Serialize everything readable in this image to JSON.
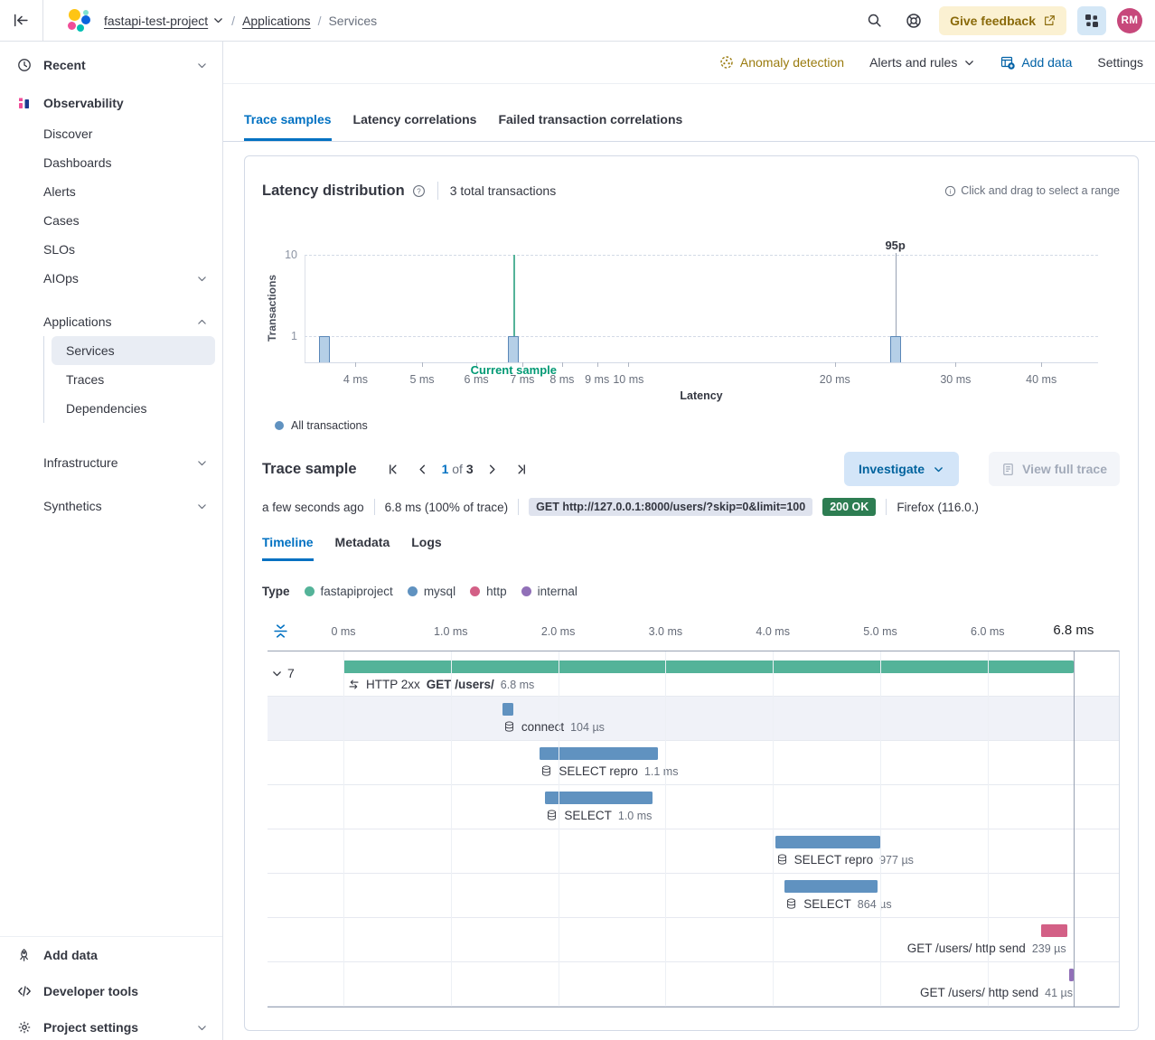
{
  "header": {
    "breadcrumbs": [
      {
        "label": "fastapi-test-project",
        "dropdown": true
      },
      {
        "label": "Applications"
      },
      {
        "label": "Services",
        "current": true
      }
    ],
    "give_feedback_label": "Give feedback",
    "avatar_initials": "RM"
  },
  "sidebar": {
    "items": [
      {
        "label": "Recent",
        "icon": "clock",
        "chevron": "down",
        "bold": true,
        "mt": 8,
        "h": 36
      },
      {
        "label": "Observability",
        "icon": "observability",
        "bold": true,
        "mt": 6,
        "h": 36
      },
      {
        "label": "Discover"
      },
      {
        "label": "Dashboards"
      },
      {
        "label": "Alerts"
      },
      {
        "label": "Cases"
      },
      {
        "label": "SLOs"
      },
      {
        "label": "AIOps",
        "chevron": "down"
      },
      {
        "label": "Applications",
        "chevron": "up",
        "mt": 16,
        "children": [
          {
            "label": "Services",
            "selected": true
          },
          {
            "label": "Traces"
          },
          {
            "label": "Dependencies"
          }
        ]
      },
      {
        "label": "Infrastructure",
        "chevron": "down",
        "mt": 28
      },
      {
        "label": "Synthetics",
        "chevron": "down",
        "mt": 16
      }
    ],
    "footer_items": [
      {
        "label": "Add data",
        "icon": "rocket"
      },
      {
        "label": "Developer tools",
        "icon": "code"
      },
      {
        "label": "Project settings",
        "icon": "gear",
        "chevron": "down"
      }
    ]
  },
  "toolbar": {
    "anomaly_detection": "Anomaly detection",
    "alerts_and_rules": "Alerts and rules",
    "add_data": "Add data",
    "settings": "Settings"
  },
  "main_tabs": [
    {
      "label": "Trace samples",
      "active": true
    },
    {
      "label": "Latency correlations"
    },
    {
      "label": "Failed transaction correlations"
    }
  ],
  "latency_panel": {
    "title": "Latency distribution",
    "total": "3 total transactions",
    "hint": "Click and drag to select a range"
  },
  "chart_data": {
    "type": "bar",
    "title": "Latency distribution",
    "xlabel": "Latency",
    "ylabel": "Transactions",
    "x_scale": "log",
    "x_domain_ms": [
      3.37,
      48.4
    ],
    "x_ticks": [
      {
        "ms": 4,
        "label": "4 ms"
      },
      {
        "ms": 5,
        "label": "5 ms"
      },
      {
        "ms": 6,
        "label": "6 ms"
      },
      {
        "ms": 7,
        "label": "7 ms"
      },
      {
        "ms": 8,
        "label": "8 ms"
      },
      {
        "ms": 9,
        "label": "9 ms"
      },
      {
        "ms": 10,
        "label": "10 ms"
      },
      {
        "ms": 20,
        "label": "20 ms"
      },
      {
        "ms": 30,
        "label": "30 ms"
      },
      {
        "ms": 40,
        "label": "40 ms"
      }
    ],
    "y_ticks": [
      {
        "v": 1,
        "label": "1"
      },
      {
        "v": 10,
        "label": "10"
      }
    ],
    "bars": [
      {
        "latency_ms": 3.6,
        "count": 1
      },
      {
        "latency_ms": 6.8,
        "count": 1
      },
      {
        "latency_ms": 24.5,
        "count": 1
      }
    ],
    "bar_fill": "#b5cfe7",
    "bar_stroke": "#5a87b8",
    "annotations": [
      {
        "ms": 6.8,
        "label": "Current sample",
        "position": "below",
        "line_color": "#54b399",
        "label_color": "#009974"
      },
      {
        "ms": 24.5,
        "label": "95p",
        "position": "above",
        "line_color": "#98a2b3",
        "label_color": "#343741"
      }
    ],
    "series_name": "All transactions",
    "legend_color": "#6092c0"
  },
  "trace_sample": {
    "title": "Trace sample",
    "page": "1",
    "of_label": "of",
    "total_pages": "3",
    "investigate_label": "Investigate",
    "view_full_trace_label": "View full trace",
    "timestamp": "a few seconds ago",
    "duration": "6.8 ms",
    "percent": "(100% of trace)",
    "url_badge": "GET http://127.0.0.1:8000/users/?skip=0&limit=100",
    "status_badge": "200 OK",
    "browser": "Firefox (116.0.)",
    "tabs": [
      {
        "label": "Timeline",
        "active": true
      },
      {
        "label": "Metadata"
      },
      {
        "label": "Logs"
      }
    ],
    "type_label": "Type",
    "types": [
      {
        "label": "fastapiproject",
        "color": "#54b399"
      },
      {
        "label": "mysql",
        "color": "#6092c0"
      },
      {
        "label": "http",
        "color": "#d36086"
      },
      {
        "label": "internal",
        "color": "#9170b8"
      }
    ]
  },
  "waterfall": {
    "total_ms": 6.8,
    "axis_ticks": [
      {
        "ms": 0,
        "label": "0 ms"
      },
      {
        "ms": 1,
        "label": "1.0 ms"
      },
      {
        "ms": 2,
        "label": "2.0 ms"
      },
      {
        "ms": 3,
        "label": "3.0 ms"
      },
      {
        "ms": 4,
        "label": "4.0 ms"
      },
      {
        "ms": 5,
        "label": "5.0 ms"
      },
      {
        "ms": 6,
        "label": "6.0 ms"
      },
      {
        "ms": 6.8,
        "label": "6.8 ms",
        "end": true
      }
    ],
    "accordion_count": "7",
    "rows": [
      {
        "kind": "transaction",
        "color": "#54b399",
        "start_ms": 0,
        "duration_ms": 6.8,
        "prefix": "HTTP 2xx",
        "name": "GET /users/",
        "duration_label": "6.8 ms",
        "icon": "transaction"
      },
      {
        "kind": "span",
        "color": "#6092c0",
        "start_ms": 1.48,
        "duration_ms": 0.104,
        "name": "connect",
        "duration_label": "104 µs",
        "icon": "database",
        "selected": true
      },
      {
        "kind": "span",
        "color": "#6092c0",
        "start_ms": 1.83,
        "duration_ms": 1.1,
        "name": "SELECT repro",
        "duration_label": "1.1 ms",
        "icon": "database"
      },
      {
        "kind": "span",
        "color": "#6092c0",
        "start_ms": 1.88,
        "duration_ms": 1.0,
        "name": "SELECT",
        "duration_label": "1.0 ms",
        "icon": "database"
      },
      {
        "kind": "span",
        "color": "#6092c0",
        "start_ms": 4.02,
        "duration_ms": 0.977,
        "name": "SELECT repro",
        "duration_label": "977 µs",
        "icon": "database"
      },
      {
        "kind": "span",
        "color": "#6092c0",
        "start_ms": 4.11,
        "duration_ms": 0.864,
        "name": "SELECT",
        "duration_label": "864 µs",
        "icon": "database"
      },
      {
        "kind": "span",
        "color": "#d36086",
        "start_ms": 6.5,
        "duration_ms": 0.239,
        "name": "GET /users/ http send",
        "duration_label": "239 µs",
        "align": "right"
      },
      {
        "kind": "span",
        "color": "#9170b8",
        "start_ms": 6.76,
        "duration_ms": 0.041,
        "name": "GET /users/ http send",
        "duration_label": "41 µs",
        "align": "right"
      }
    ]
  }
}
